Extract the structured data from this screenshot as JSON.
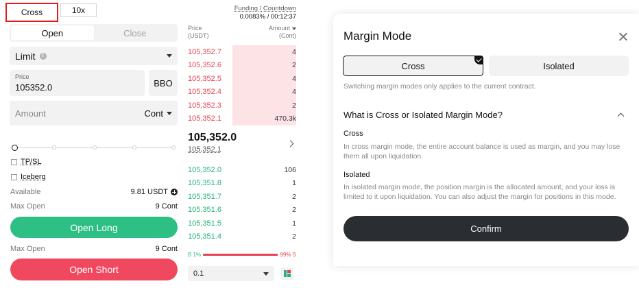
{
  "header": {
    "margin_mode_tab": "Cross",
    "leverage_tab": "10x"
  },
  "order_form": {
    "open_label": "Open",
    "close_label": "Close",
    "order_type": "Limit",
    "price_label": "Price",
    "price_value": "105352.0",
    "bbo_label": "BBO",
    "amount_placeholder": "Amount",
    "amount_unit": "Cont",
    "slider_percent": 0,
    "tpsl_label": "TP/SL",
    "iceberg_label": "Iceberg",
    "available_label": "Available",
    "available_value": "9.81 USDT",
    "max_open_label": "Max Open",
    "max_open_long_value": "9 Cont",
    "open_long_label": "Open Long",
    "max_open_short_value": "9 Cont",
    "open_short_label": "Open Short"
  },
  "order_book": {
    "funding_label": "Funding / Countdown",
    "funding_value": "0.0083% / 00:12:37",
    "price_header": "Price",
    "price_header_unit": "(USDT)",
    "amount_header": "Amount",
    "amount_header_unit": "(Cont)",
    "asks": [
      {
        "price": "105,352.7",
        "amount": "4"
      },
      {
        "price": "105,352.6",
        "amount": "2"
      },
      {
        "price": "105,352.5",
        "amount": "4"
      },
      {
        "price": "105,352.4",
        "amount": "4"
      },
      {
        "price": "105,352.3",
        "amount": "2"
      },
      {
        "price": "105,352.1",
        "amount": "470.3k"
      }
    ],
    "last_price": "105,352.0",
    "mark_price": "105,352.1",
    "bids": [
      {
        "price": "105,352.0",
        "amount": "106"
      },
      {
        "price": "105,351.8",
        "amount": "1"
      },
      {
        "price": "105,351.7",
        "amount": "2"
      },
      {
        "price": "105,351.6",
        "amount": "2"
      },
      {
        "price": "105,351.5",
        "amount": "1"
      },
      {
        "price": "105,351.4",
        "amount": "2"
      }
    ],
    "buy_ratio_label": "B 1%",
    "sell_ratio_label": "99% S",
    "buy_ratio": 1,
    "depth_value": "0.1"
  },
  "modal": {
    "title": "Margin Mode",
    "cross_label": "Cross",
    "isolated_label": "Isolated",
    "selected": "Cross",
    "hint": "Switching margin modes only applies to the current contract.",
    "faq_title": "What is Cross or Isolated Margin Mode?",
    "cross_title": "Cross",
    "cross_desc": "In cross margin mode, the entire account balance is used as margin, and you may lose them all upon liquidation.",
    "isolated_title": "Isolated",
    "isolated_desc": "In isolated margin mode, the position margin is the allocated amount, and your loss is limited to it upon liquidation. You can also adjust the margin for positions in this mode.",
    "confirm_label": "Confirm"
  },
  "colors": {
    "buy": "#2ebf85",
    "sell": "#f0495f",
    "highlight_border": "#e21b1b",
    "confirm": "#2a2d31"
  }
}
